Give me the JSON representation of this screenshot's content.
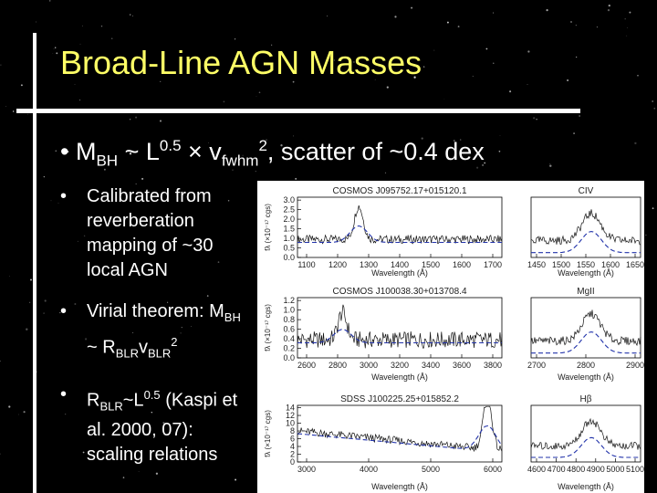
{
  "slide": {
    "title": "Broad-Line AGN Masses",
    "main_bullet": {
      "M": "M",
      "bh": "BH",
      "approx": " ~ L",
      "exp": "0.5",
      "times": " × v",
      "fwhm": "fwhm",
      "sq": "2",
      "rest": ", scatter of ~0.4 dex"
    },
    "bullets": [
      {
        "text": "Calibrated from reverberation mapping of ~30 local AGN"
      },
      {
        "lead": "Virial theorem: M",
        "bh": "BH",
        "mid": " ~ R",
        "blr": "BLR",
        "v": "v",
        "vblr": "BLR",
        "sq": "2"
      },
      {
        "r": "R",
        "blr": "BLR",
        "l": "~L",
        "exp": "0.5",
        "rest": " (Kaspi et al. 2000, 07): scaling relations"
      }
    ]
  },
  "figure": {
    "ylabel": "fλ (×10⁻¹⁷ cgs)",
    "xlabel": "Wavelength (Å)",
    "panels": [
      {
        "title": "COSMOS J095752.17+015120.1",
        "line": "CIV",
        "y_ticks": [
          "0.0",
          "0.5",
          "1.0",
          "1.5",
          "2.0",
          "2.5",
          "3.0"
        ],
        "x_ticks_left": [
          "1100",
          "1200",
          "1300",
          "1400",
          "1500",
          "1600",
          "1700"
        ],
        "x_ticks_right": [
          "1450",
          "1500",
          "1550",
          "1600",
          "1650"
        ]
      },
      {
        "title": "COSMOS J100038.30+013708.4",
        "line": "MgII",
        "y_ticks": [
          "0.0",
          "0.2",
          "0.4",
          "0.6",
          "0.8",
          "1.0",
          "1.2"
        ],
        "x_ticks_left": [
          "2600",
          "2800",
          "3000",
          "3200",
          "3400",
          "3600",
          "3800"
        ],
        "x_ticks_right": [
          "2700",
          "2800",
          "2900"
        ]
      },
      {
        "title": "SDSS J100225.25+015852.2",
        "line": "Hβ",
        "y_ticks": [
          "0",
          "2",
          "4",
          "6",
          "8",
          "10",
          "12",
          "14"
        ],
        "x_ticks_left": [
          "3000",
          "4000",
          "5000",
          "6000"
        ],
        "x_ticks_right": [
          "4600",
          "4700",
          "4800",
          "4900",
          "5000",
          "5100"
        ]
      }
    ]
  }
}
